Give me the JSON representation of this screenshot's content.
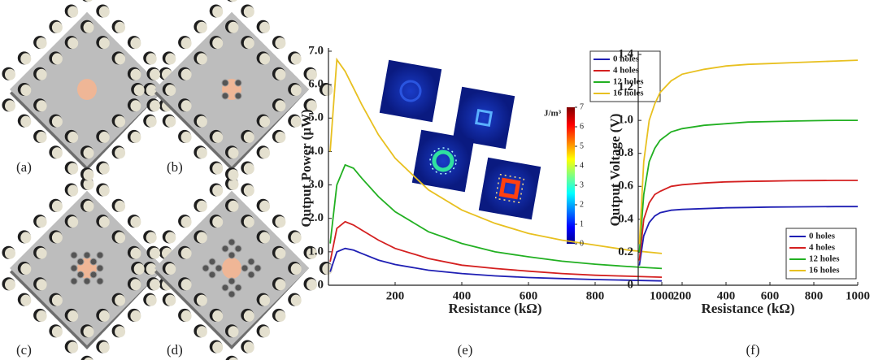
{
  "panels": {
    "labels": [
      "(a)",
      "(b)",
      "(c)",
      "(d)"
    ]
  },
  "chart_data": [
    {
      "type": "line",
      "panel_label": "(e)",
      "y_label": "Output Power (μW)",
      "x_label": "Resistance (kΩ)",
      "x": [
        5,
        25,
        50,
        75,
        100,
        150,
        200,
        300,
        400,
        500,
        600,
        700,
        800,
        900,
        1000
      ],
      "series": [
        {
          "name": "0 holes",
          "color": "#1f1fb4",
          "values": [
            0.4,
            1.0,
            1.1,
            1.05,
            0.95,
            0.75,
            0.62,
            0.45,
            0.35,
            0.28,
            0.23,
            0.2,
            0.17,
            0.15,
            0.13
          ]
        },
        {
          "name": "4 holes",
          "color": "#d42020",
          "values": [
            0.7,
            1.7,
            1.9,
            1.8,
            1.65,
            1.35,
            1.1,
            0.8,
            0.6,
            0.5,
            0.42,
            0.35,
            0.3,
            0.27,
            0.24
          ]
        },
        {
          "name": "12 holes",
          "color": "#22b022",
          "values": [
            1.25,
            3.0,
            3.6,
            3.5,
            3.2,
            2.65,
            2.2,
            1.6,
            1.25,
            1.0,
            0.85,
            0.72,
            0.63,
            0.56,
            0.5
          ]
        },
        {
          "name": "16 holes",
          "color": "#e8c020",
          "values": [
            4.0,
            6.75,
            6.4,
            5.9,
            5.4,
            4.5,
            3.8,
            2.85,
            2.25,
            1.85,
            1.55,
            1.35,
            1.2,
            1.05,
            0.95
          ]
        }
      ],
      "xlim": [
        0,
        1000
      ],
      "xticks": [
        200,
        400,
        600,
        800,
        1000
      ],
      "ylim": [
        0,
        7
      ],
      "yticks": [
        0,
        {
          "value": 1,
          "label": "1.0"
        },
        {
          "value": 2,
          "label": "2.0"
        },
        {
          "value": 3,
          "label": "3.0"
        },
        {
          "value": 4,
          "label": "4.0"
        },
        {
          "value": 5,
          "label": "5.0"
        },
        {
          "value": 6,
          "label": "6.0"
        },
        {
          "value": 7,
          "label": "7.0"
        }
      ],
      "legend": "upper right",
      "colorbar": {
        "label": "J/m³",
        "clim": [
          0,
          7
        ],
        "ticks": [
          0,
          1,
          2,
          3,
          4,
          5,
          6,
          7
        ]
      }
    },
    {
      "type": "line",
      "panel_label": "(f)",
      "y_label": "Output Voltage (V)",
      "x_label": "Resistance (kΩ)",
      "x": [
        5,
        25,
        50,
        75,
        100,
        150,
        200,
        300,
        400,
        500,
        600,
        700,
        800,
        900,
        1000
      ],
      "series": [
        {
          "name": "0 holes",
          "color": "#1f1fb4",
          "values": [
            0.12,
            0.3,
            0.38,
            0.42,
            0.44,
            0.455,
            0.46,
            0.465,
            0.47,
            0.472,
            0.474,
            0.475,
            0.476,
            0.477,
            0.477
          ]
        },
        {
          "name": "4 holes",
          "color": "#d42020",
          "values": [
            0.15,
            0.4,
            0.5,
            0.55,
            0.57,
            0.6,
            0.61,
            0.62,
            0.627,
            0.63,
            0.632,
            0.634,
            0.635,
            0.636,
            0.636
          ]
        },
        {
          "name": "12 holes",
          "color": "#22b022",
          "values": [
            0.2,
            0.55,
            0.75,
            0.83,
            0.88,
            0.93,
            0.95,
            0.97,
            0.98,
            0.99,
            0.993,
            0.996,
            0.998,
            1.0,
            1.0
          ]
        },
        {
          "name": "16 holes",
          "color": "#e8c020",
          "values": [
            0.25,
            0.75,
            1.0,
            1.1,
            1.17,
            1.24,
            1.28,
            1.31,
            1.33,
            1.34,
            1.345,
            1.35,
            1.355,
            1.36,
            1.365
          ]
        }
      ],
      "xlim": [
        0,
        1000
      ],
      "xticks": [
        200,
        400,
        600,
        800,
        1000
      ],
      "ylim": [
        0,
        1.4
      ],
      "yticks": [
        0,
        0.2,
        0.4,
        0.6,
        0.8,
        {
          "value": 1,
          "label": "1.0"
        },
        1.2,
        1.4
      ],
      "legend": "lower right"
    }
  ]
}
